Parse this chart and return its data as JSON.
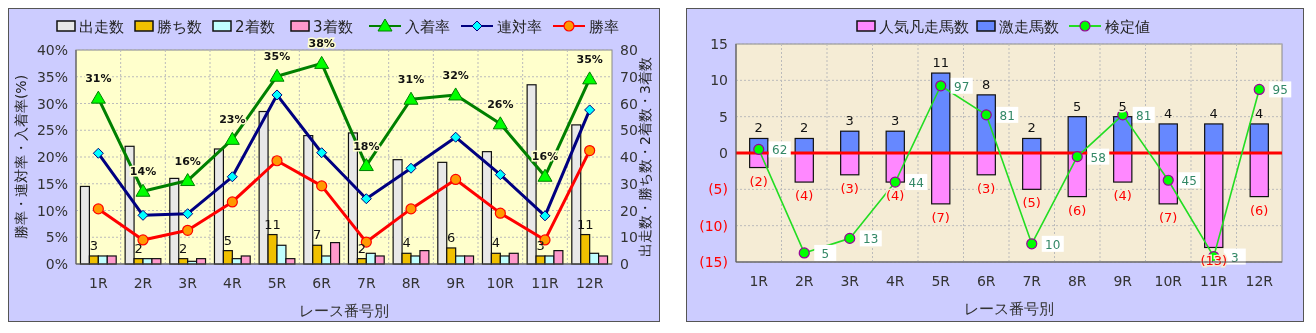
{
  "chart_data": [
    {
      "type": "bar",
      "xlabel": "レース番号別",
      "ylabel": "勝率・連対率・入着率(%)",
      "y2label": "出走数・勝ち数・2着数・3着数",
      "categories": [
        "1R",
        "2R",
        "3R",
        "4R",
        "5R",
        "6R",
        "7R",
        "8R",
        "9R",
        "10R",
        "11R",
        "12R"
      ],
      "series": [
        {
          "name": "出走数",
          "axis": "y2",
          "color": "#e8e8e8",
          "values": [
            29,
            44,
            32,
            43,
            57,
            48,
            49,
            39,
            38,
            42,
            67,
            52
          ]
        },
        {
          "name": "勝ち数",
          "axis": "y2",
          "color": "#f0c000",
          "values": [
            3,
            2,
            2,
            5,
            11,
            7,
            2,
            4,
            6,
            4,
            3,
            11
          ],
          "value_labels": [
            "3",
            "2",
            "2",
            "5",
            "11",
            "7",
            "2",
            "4",
            "6",
            "4",
            "3",
            "11"
          ]
        },
        {
          "name": "2着数",
          "axis": "y2",
          "color": "#c0ffff",
          "values": [
            3,
            2,
            1,
            2,
            7,
            3,
            4,
            3,
            3,
            3,
            3,
            4
          ]
        },
        {
          "name": "3着数",
          "axis": "y2",
          "color": "#ff99cc",
          "values": [
            3,
            2,
            2,
            3,
            2,
            8,
            3,
            5,
            3,
            4,
            5,
            3
          ]
        },
        {
          "name": "入着率",
          "type": "line",
          "marker": "triangle",
          "color": "#008000",
          "values": [
            31.0,
            13.6,
            15.6,
            23.3,
            35.1,
            37.5,
            18.4,
            30.8,
            31.6,
            26.2,
            16.4,
            34.6
          ],
          "value_labels": [
            "31%",
            "14%",
            "16%",
            "23%",
            "35%",
            "38%",
            "18%",
            "31%",
            "32%",
            "26%",
            "16%",
            "35%"
          ]
        },
        {
          "name": "連対率",
          "type": "line",
          "marker": "diamond",
          "color": "#000080",
          "values": [
            20.7,
            9.1,
            9.4,
            16.3,
            31.6,
            20.8,
            12.2,
            17.9,
            23.7,
            16.7,
            9.0,
            28.8
          ]
        },
        {
          "name": "勝率",
          "type": "line",
          "marker": "circle",
          "color": "#ff0000",
          "values": [
            10.3,
            4.5,
            6.3,
            11.6,
            19.3,
            14.6,
            4.1,
            10.3,
            15.8,
            9.5,
            4.5,
            21.2
          ]
        }
      ],
      "ylim": [
        0,
        40
      ],
      "yticks": [
        {
          "value": 0,
          "label": "0%"
        },
        {
          "value": 5,
          "label": "5%"
        },
        {
          "value": 10,
          "label": "10%"
        },
        {
          "value": 15,
          "label": "15%"
        },
        {
          "value": 20,
          "label": "20%"
        },
        {
          "value": 25,
          "label": "25%"
        },
        {
          "value": 30,
          "label": "30%"
        },
        {
          "value": 35,
          "label": "35%"
        },
        {
          "value": 40,
          "label": "40%"
        }
      ],
      "y2lim": [
        0,
        80
      ],
      "y2ticks": [
        0,
        10,
        20,
        30,
        40,
        50,
        60,
        70,
        80
      ],
      "grid": true,
      "legend": "top"
    },
    {
      "type": "bar",
      "xlabel": "レース番号別",
      "stacked": true,
      "categories": [
        "1R",
        "2R",
        "3R",
        "4R",
        "5R",
        "6R",
        "7R",
        "8R",
        "9R",
        "10R",
        "11R",
        "12R"
      ],
      "series": [
        {
          "name": "人気凡走馬数",
          "color": "#ff88ff",
          "values": [
            -2,
            -4,
            -3,
            -4,
            -7,
            -3,
            -5,
            -6,
            -4,
            -7,
            -13,
            -6
          ],
          "value_labels": [
            "(2)",
            "(4)",
            "(3)",
            "(4)",
            "(7)",
            "(3)",
            "(5)",
            "(6)",
            "(4)",
            "(7)",
            "(13)",
            "(6)"
          ]
        },
        {
          "name": "激走馬数",
          "color": "#6688ff",
          "values": [
            2,
            2,
            3,
            3,
            11,
            8,
            2,
            5,
            5,
            4,
            4,
            4
          ],
          "value_labels": [
            "2",
            "2",
            "3",
            "3",
            "11",
            "8",
            "2",
            "5",
            "5",
            "4",
            "4",
            "4"
          ]
        },
        {
          "name": "検定値",
          "type": "line",
          "axis": "y2",
          "marker": "circle",
          "color": "#22dd22",
          "values": [
            62,
            5,
            13,
            44,
            97,
            81,
            10,
            58,
            81,
            45,
            3,
            95
          ],
          "value_labels": [
            "62",
            "5",
            "13",
            "44",
            "97",
            "81",
            "10",
            "58",
            "81",
            "45",
            "3",
            "95"
          ]
        }
      ],
      "ylim": [
        -15,
        15
      ],
      "yticks": [
        {
          "value": -15,
          "label": "(15)"
        },
        {
          "value": -10,
          "label": "(10)"
        },
        {
          "value": -5,
          "label": "(5)"
        },
        0,
        5,
        10,
        15
      ],
      "y2lim": [
        0,
        120
      ],
      "ref_lines": [
        {
          "axis": "y",
          "value": 0,
          "color": "#ff0000"
        }
      ],
      "grid": true,
      "legend": "top"
    }
  ]
}
